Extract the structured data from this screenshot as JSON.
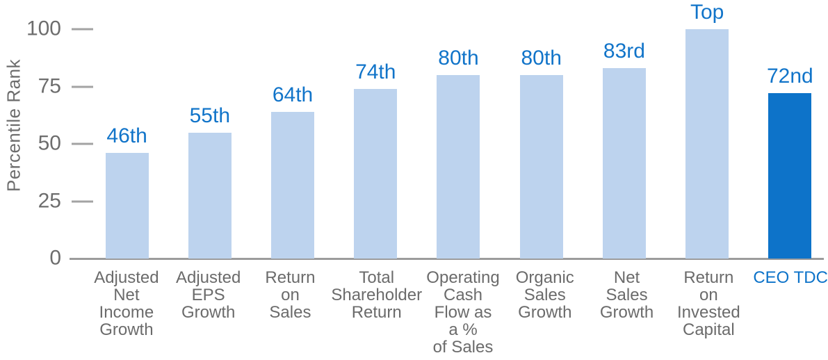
{
  "chart_data": {
    "type": "bar",
    "title": "",
    "xlabel": "",
    "ylabel": "Percentile Rank",
    "ylim": [
      0,
      100
    ],
    "yticks": [
      0,
      25,
      50,
      75,
      100
    ],
    "grid": false,
    "legend": null,
    "categories": [
      "Adjusted Net Income Growth",
      "Adjusted EPS Growth",
      "Return on Sales",
      "Total Shareholder Return",
      "Operating Cash Flow as a % of Sales",
      "Organic Sales Growth",
      "Net Sales Growth",
      "Return on Invested Capital",
      "CEO TDC"
    ],
    "category_lines": [
      [
        "Adjusted",
        "Net",
        "Income",
        "Growth"
      ],
      [
        "Adjusted",
        "EPS",
        "Growth"
      ],
      [
        "Return",
        "on",
        "Sales"
      ],
      [
        "Total",
        "Shareholder",
        "Return"
      ],
      [
        "Operating",
        "Cash",
        "Flow as",
        "a %",
        "of Sales"
      ],
      [
        "Organic",
        "Sales",
        "Growth"
      ],
      [
        "Net",
        "Sales",
        "Growth"
      ],
      [
        "Return",
        "on",
        "Invested",
        "Capital"
      ],
      [
        "CEO TDC"
      ]
    ],
    "values": [
      46,
      55,
      64,
      74,
      80,
      80,
      83,
      100,
      72
    ],
    "value_labels": [
      "46th",
      "55th",
      "64th",
      "74th",
      "80th",
      "80th",
      "83rd",
      "Top",
      "72nd"
    ],
    "highlight_index": 8,
    "colors": {
      "bar_default": "#bdd3ee",
      "bar_highlight": "#0d73c9",
      "value_label": "#1174c9",
      "axis_text": "#6d6d6d",
      "axis_line": "#9c9c9c",
      "tick_mark": "#a3a3a3",
      "highlight_category_text": "#0d73c9",
      "background": "#ffffff"
    }
  }
}
